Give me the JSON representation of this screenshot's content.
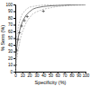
{
  "chart_data": {
    "type": "line",
    "xlabel": "Specificity (%)",
    "ylabel": "% Sens (%)",
    "xlim": [
      0,
      100
    ],
    "ylim": [
      0,
      100
    ],
    "xticks": [
      0,
      10,
      20,
      30,
      40,
      50,
      60,
      70,
      80,
      90,
      100
    ],
    "yticks": [
      0,
      10,
      20,
      30,
      40,
      50,
      60,
      70,
      80,
      90,
      100
    ],
    "grid": false,
    "series": [
      {
        "type": "line",
        "line_style": "dashed",
        "color": "#999999",
        "x": [
          0,
          1,
          2,
          4,
          6,
          8,
          10,
          13,
          16,
          20,
          25,
          30,
          40,
          50,
          60,
          70,
          80,
          90,
          100
        ],
        "values": [
          0,
          35,
          50,
          65,
          74,
          81,
          86,
          90,
          93,
          96,
          97,
          98,
          99,
          99.5,
          99.8,
          100,
          100,
          100,
          100
        ]
      },
      {
        "type": "line",
        "line_style": "dashed",
        "color": "#999999",
        "x": [
          0,
          1,
          2,
          4,
          6,
          8,
          10,
          13,
          16,
          20,
          25,
          30,
          40,
          50,
          60,
          70,
          80,
          90,
          100
        ],
        "values": [
          0,
          10,
          18,
          32,
          42,
          52,
          59,
          67,
          74,
          80,
          86,
          89,
          93,
          95,
          97,
          98,
          98.5,
          99,
          99.5
        ]
      },
      {
        "type": "line",
        "line_style": "solid",
        "color": "#555555",
        "x": [
          0,
          1,
          2,
          4,
          6,
          8,
          10,
          13,
          16,
          20,
          25,
          30,
          40,
          50,
          60,
          70,
          80,
          90,
          100
        ],
        "values": [
          0,
          22,
          35,
          50,
          60,
          68,
          74,
          80,
          85,
          89,
          93,
          95,
          97,
          98,
          98.5,
          99,
          99.5,
          99.8,
          100
        ]
      },
      {
        "type": "scatter",
        "marker": "plus",
        "color": "#333333",
        "x": [
          0.5,
          2,
          4,
          6,
          9,
          13,
          17,
          40
        ],
        "values": [
          10,
          32,
          48,
          58,
          68,
          76,
          82,
          90
        ]
      }
    ]
  }
}
